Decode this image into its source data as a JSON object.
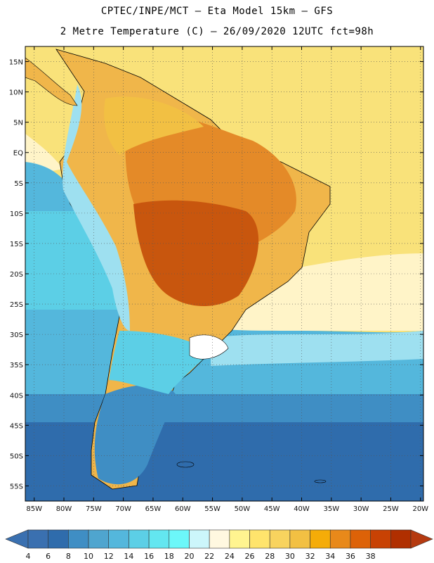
{
  "header": {
    "line1": "CPTEC/INPE/MCT –  Eta Model 15km – GFS",
    "line2": "2 Metre Temperature (C) – 26/09/2020 12UTC fct=98h"
  },
  "map": {
    "region": "South America",
    "variable": "2 Metre Temperature",
    "units": "C",
    "lat_labels": [
      "15N",
      "10N",
      "5N",
      "EQ",
      "5S",
      "10S",
      "15S",
      "20S",
      "25S",
      "30S",
      "35S",
      "40S",
      "45S",
      "50S",
      "55S"
    ],
    "lon_labels": [
      "85W",
      "80W",
      "75W",
      "70W",
      "65W",
      "60W",
      "55W",
      "50W",
      "45W",
      "40W",
      "35W",
      "30W",
      "25W",
      "20W"
    ],
    "lat_range": [
      17.5,
      -57.5
    ],
    "lon_range": [
      -86.5,
      -19.5
    ],
    "grid_lines": "dotted"
  },
  "colorbar": {
    "ticks": [
      "4",
      "6",
      "8",
      "10",
      "12",
      "14",
      "16",
      "18",
      "20",
      "22",
      "24",
      "26",
      "28",
      "30",
      "32",
      "34",
      "36",
      "38"
    ],
    "colors": [
      "#3a70b0",
      "#2f6cac",
      "#3f8ec4",
      "#4fa5cf",
      "#54b7dc",
      "#5ccfe6",
      "#63e6f0",
      "#6cf7f9",
      "#ccf6fb",
      "#fff8e0",
      "#fff490",
      "#ffe46c",
      "#f8d35e",
      "#f2c043",
      "#f5ac08",
      "#e8891a",
      "#dd6208",
      "#c84204",
      "#b02f00"
    ],
    "under_color": "#3a70b0",
    "over_color": "#b53a10"
  },
  "colors": {
    "ocean_cold": "#2f5da0",
    "ocean_cool": "#3f8ec4",
    "ocean_mild": "#54b7dc",
    "ocean_warm": "#5ccfe6",
    "sea_tropical": "#f9e27a",
    "land_hot": "#e48a28",
    "land_very_hot": "#c8560e",
    "andes_cold": "#9ee0f0"
  }
}
